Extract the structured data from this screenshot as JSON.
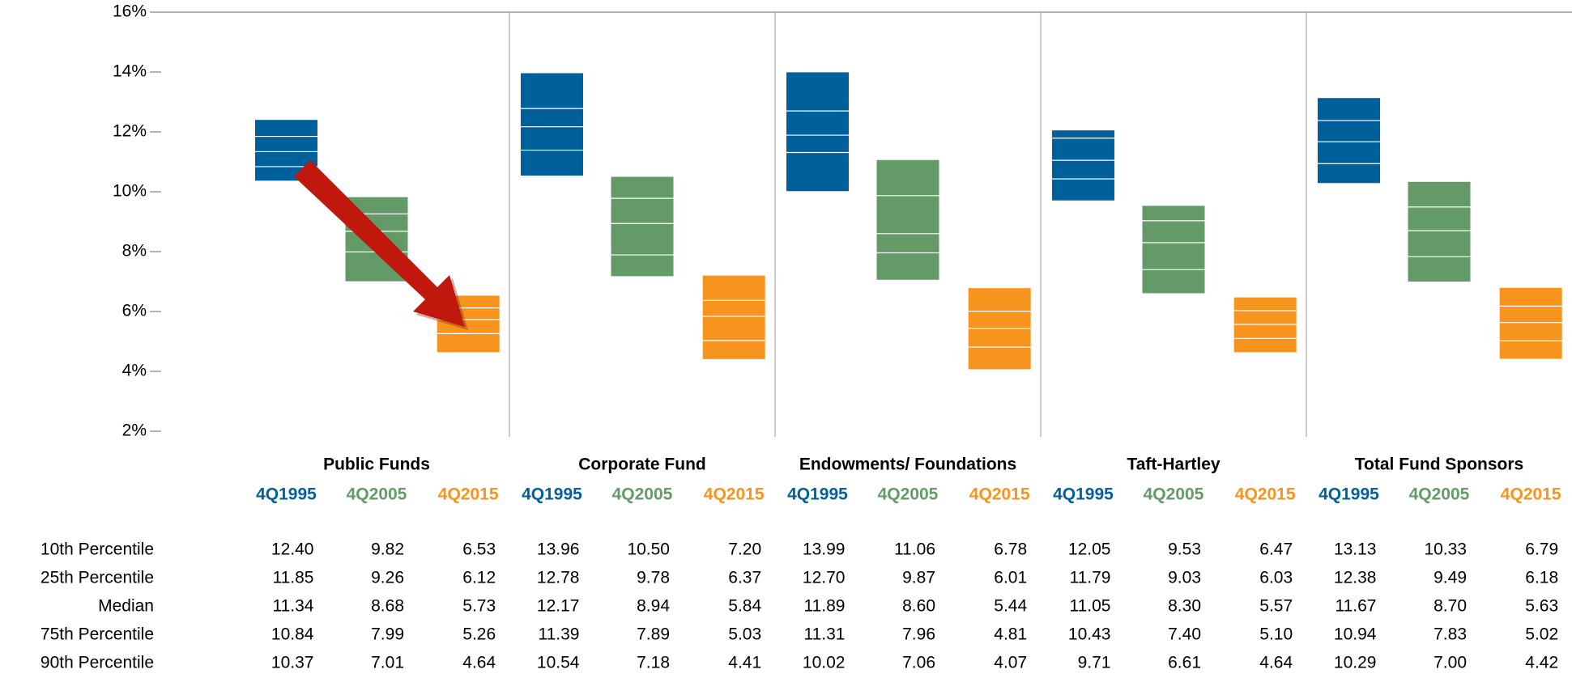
{
  "chart_data": {
    "type": "range",
    "ylim": [
      2,
      16
    ],
    "yticks": [
      {
        "value": 2,
        "label": "2%"
      },
      {
        "value": 4,
        "label": "4%"
      },
      {
        "value": 6,
        "label": "6%"
      },
      {
        "value": 8,
        "label": "8%"
      },
      {
        "value": 10,
        "label": "10%"
      },
      {
        "value": 12,
        "label": "12%"
      },
      {
        "value": 14,
        "label": "14%"
      },
      {
        "value": 16,
        "label": "16%"
      }
    ],
    "stat_labels": [
      "10th Percentile",
      "25th Percentile",
      "Median",
      "75th Percentile",
      "90th Percentile"
    ],
    "groups": [
      {
        "name": "Public Funds",
        "series": [
          {
            "name": "4Q1995",
            "color": "#00609c",
            "values": [
              12.4,
              11.85,
              11.34,
              10.84,
              10.37
            ],
            "value_labels": [
              "12.40",
              "11.85",
              "11.34",
              "10.84",
              "10.37"
            ]
          },
          {
            "name": "4Q2005",
            "color": "#639a67",
            "values": [
              9.82,
              9.26,
              8.68,
              7.99,
              7.01
            ],
            "value_labels": [
              "9.82",
              "9.26",
              "8.68",
              "7.99",
              "7.01"
            ]
          },
          {
            "name": "4Q2015",
            "color": "#f7941d",
            "values": [
              6.53,
              6.12,
              5.73,
              5.26,
              4.64
            ],
            "value_labels": [
              "6.53",
              "6.12",
              "5.73",
              "5.26",
              "4.64"
            ]
          }
        ]
      },
      {
        "name": "Corporate Fund",
        "series": [
          {
            "name": "4Q1995",
            "color": "#00609c",
            "values": [
              13.96,
              12.78,
              12.17,
              11.39,
              10.54
            ],
            "value_labels": [
              "13.96",
              "12.78",
              "12.17",
              "11.39",
              "10.54"
            ]
          },
          {
            "name": "4Q2005",
            "color": "#639a67",
            "values": [
              10.5,
              9.78,
              8.94,
              7.89,
              7.18
            ],
            "value_labels": [
              "10.50",
              "9.78",
              "8.94",
              "7.89",
              "7.18"
            ]
          },
          {
            "name": "4Q2015",
            "color": "#f7941d",
            "values": [
              7.2,
              6.37,
              5.84,
              5.03,
              4.41
            ],
            "value_labels": [
              "7.20",
              "6.37",
              "5.84",
              "5.03",
              "4.41"
            ]
          }
        ]
      },
      {
        "name": "Endowments/ Foundations",
        "series": [
          {
            "name": "4Q1995",
            "color": "#00609c",
            "values": [
              13.99,
              12.7,
              11.89,
              11.31,
              10.02
            ],
            "value_labels": [
              "13.99",
              "12.70",
              "11.89",
              "11.31",
              "10.02"
            ]
          },
          {
            "name": "4Q2005",
            "color": "#639a67",
            "values": [
              11.06,
              9.87,
              8.6,
              7.96,
              7.06
            ],
            "value_labels": [
              "11.06",
              "9.87",
              "8.60",
              "7.96",
              "7.06"
            ]
          },
          {
            "name": "4Q2015",
            "color": "#f7941d",
            "values": [
              6.78,
              6.01,
              5.44,
              4.81,
              4.07
            ],
            "value_labels": [
              "6.78",
              "6.01",
              "5.44",
              "4.81",
              "4.07"
            ]
          }
        ]
      },
      {
        "name": "Taft-Hartley",
        "series": [
          {
            "name": "4Q1995",
            "color": "#00609c",
            "values": [
              12.05,
              11.79,
              11.05,
              10.43,
              9.71
            ],
            "value_labels": [
              "12.05",
              "11.79",
              "11.05",
              "10.43",
              "9.71"
            ]
          },
          {
            "name": "4Q2005",
            "color": "#639a67",
            "values": [
              9.53,
              9.03,
              8.3,
              7.4,
              6.61
            ],
            "value_labels": [
              "9.53",
              "9.03",
              "8.30",
              "7.40",
              "6.61"
            ]
          },
          {
            "name": "4Q2015",
            "color": "#f7941d",
            "values": [
              6.47,
              6.03,
              5.57,
              5.1,
              4.64
            ],
            "value_labels": [
              "6.47",
              "6.03",
              "5.57",
              "5.10",
              "4.64"
            ]
          }
        ]
      },
      {
        "name": "Total Fund Sponsors",
        "series": [
          {
            "name": "4Q1995",
            "color": "#00609c",
            "values": [
              13.13,
              12.38,
              11.67,
              10.94,
              10.29
            ],
            "value_labels": [
              "13.13",
              "12.38",
              "11.67",
              "10.94",
              "10.29"
            ]
          },
          {
            "name": "4Q2005",
            "color": "#639a67",
            "values": [
              10.33,
              9.49,
              8.7,
              7.83,
              7.0
            ],
            "value_labels": [
              "10.33",
              "9.49",
              "8.70",
              "7.83",
              "7.00"
            ]
          },
          {
            "name": "4Q2015",
            "color": "#f7941d",
            "values": [
              6.79,
              6.18,
              5.63,
              5.02,
              4.42
            ],
            "value_labels": [
              "6.79",
              "6.18",
              "5.63",
              "5.02",
              "4.42"
            ]
          }
        ]
      }
    ]
  }
}
